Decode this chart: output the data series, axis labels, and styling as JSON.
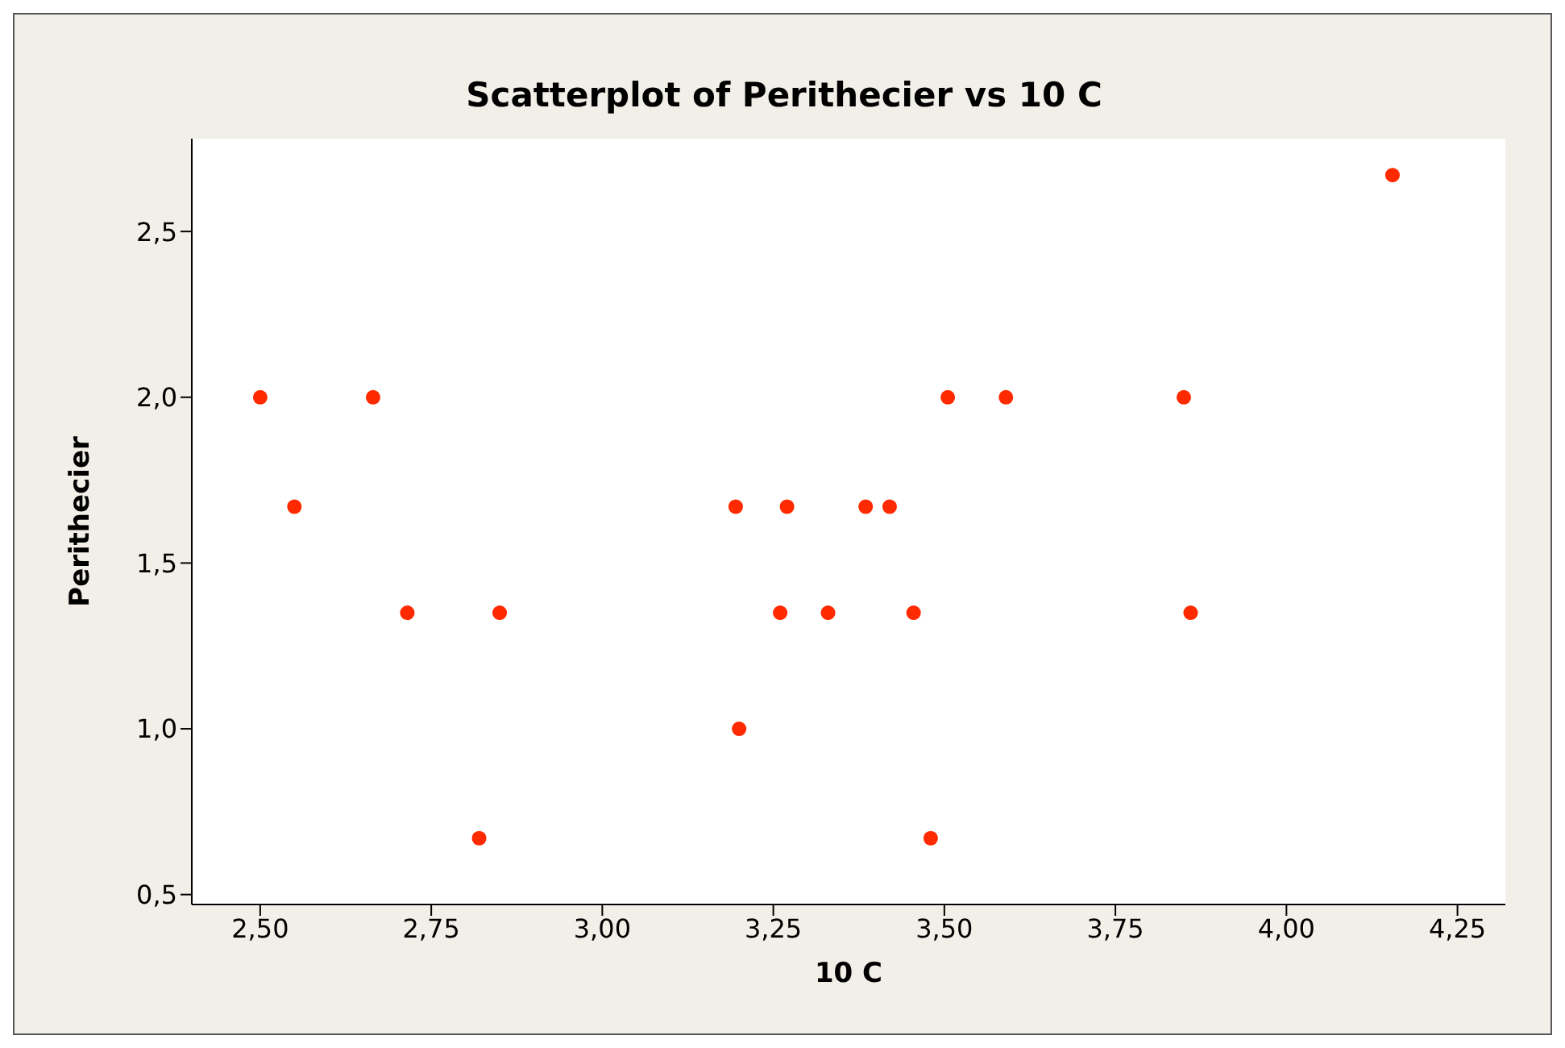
{
  "chart_data": {
    "type": "scatter",
    "title": "Scatterplot of Perithecier vs 10 C",
    "xlabel": "10 C",
    "ylabel": "Perithecier",
    "x": [
      2.5,
      2.55,
      2.665,
      2.715,
      2.82,
      2.85,
      3.195,
      3.2,
      3.26,
      3.27,
      3.33,
      3.385,
      3.42,
      3.455,
      3.48,
      3.505,
      3.59,
      3.85,
      3.86,
      4.155
    ],
    "values": [
      2.0,
      1.67,
      2.0,
      1.35,
      0.67,
      1.35,
      1.67,
      1.0,
      1.35,
      1.67,
      1.35,
      1.67,
      1.67,
      1.35,
      0.67,
      2.0,
      2.0,
      2.0,
      1.35,
      2.67
    ],
    "color": "#ff2a00",
    "marker": "circle",
    "grid": false,
    "legend": false,
    "xlim": [
      2.4,
      4.32
    ],
    "xticks": [
      {
        "value": 2.5,
        "label": "2,50"
      },
      {
        "value": 2.75,
        "label": "2,75"
      },
      {
        "value": 3.0,
        "label": "3,00"
      },
      {
        "value": 3.25,
        "label": "3,25"
      },
      {
        "value": 3.5,
        "label": "3,50"
      },
      {
        "value": 3.75,
        "label": "3,75"
      },
      {
        "value": 4.0,
        "label": "4,00"
      },
      {
        "value": 4.25,
        "label": "4,25"
      }
    ],
    "ylim": [
      0.47,
      2.78
    ],
    "yticks": [
      {
        "value": 0.5,
        "label": "0,5"
      },
      {
        "value": 1.0,
        "label": "1,0"
      },
      {
        "value": 1.5,
        "label": "1,5"
      },
      {
        "value": 2.0,
        "label": "2,0"
      },
      {
        "value": 2.5,
        "label": "2,5"
      }
    ]
  }
}
